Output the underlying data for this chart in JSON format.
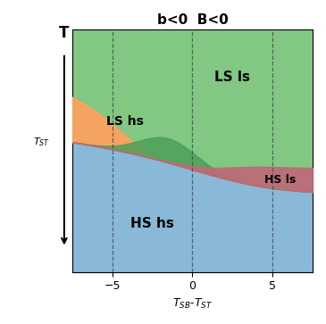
{
  "title": "b<0  B<0",
  "xlabel": "T$_{SB}$-T$_{ST}$",
  "xlim": [
    -7.5,
    7.5
  ],
  "xticks": [
    -5,
    0,
    5
  ],
  "dashed_vlines": [
    -5,
    0,
    5
  ],
  "color_LS_ls": "#82c882",
  "color_HS_hs": "#89b8d8",
  "color_LS_hs": "#f4a460",
  "color_HS_ls": "#c06878",
  "color_mixed": "#4e9e5a",
  "label_LS_ls": "LS ls",
  "label_HS_hs": "HS hs",
  "label_LS_hs": "LS hs",
  "label_HS_ls": "HS ls"
}
